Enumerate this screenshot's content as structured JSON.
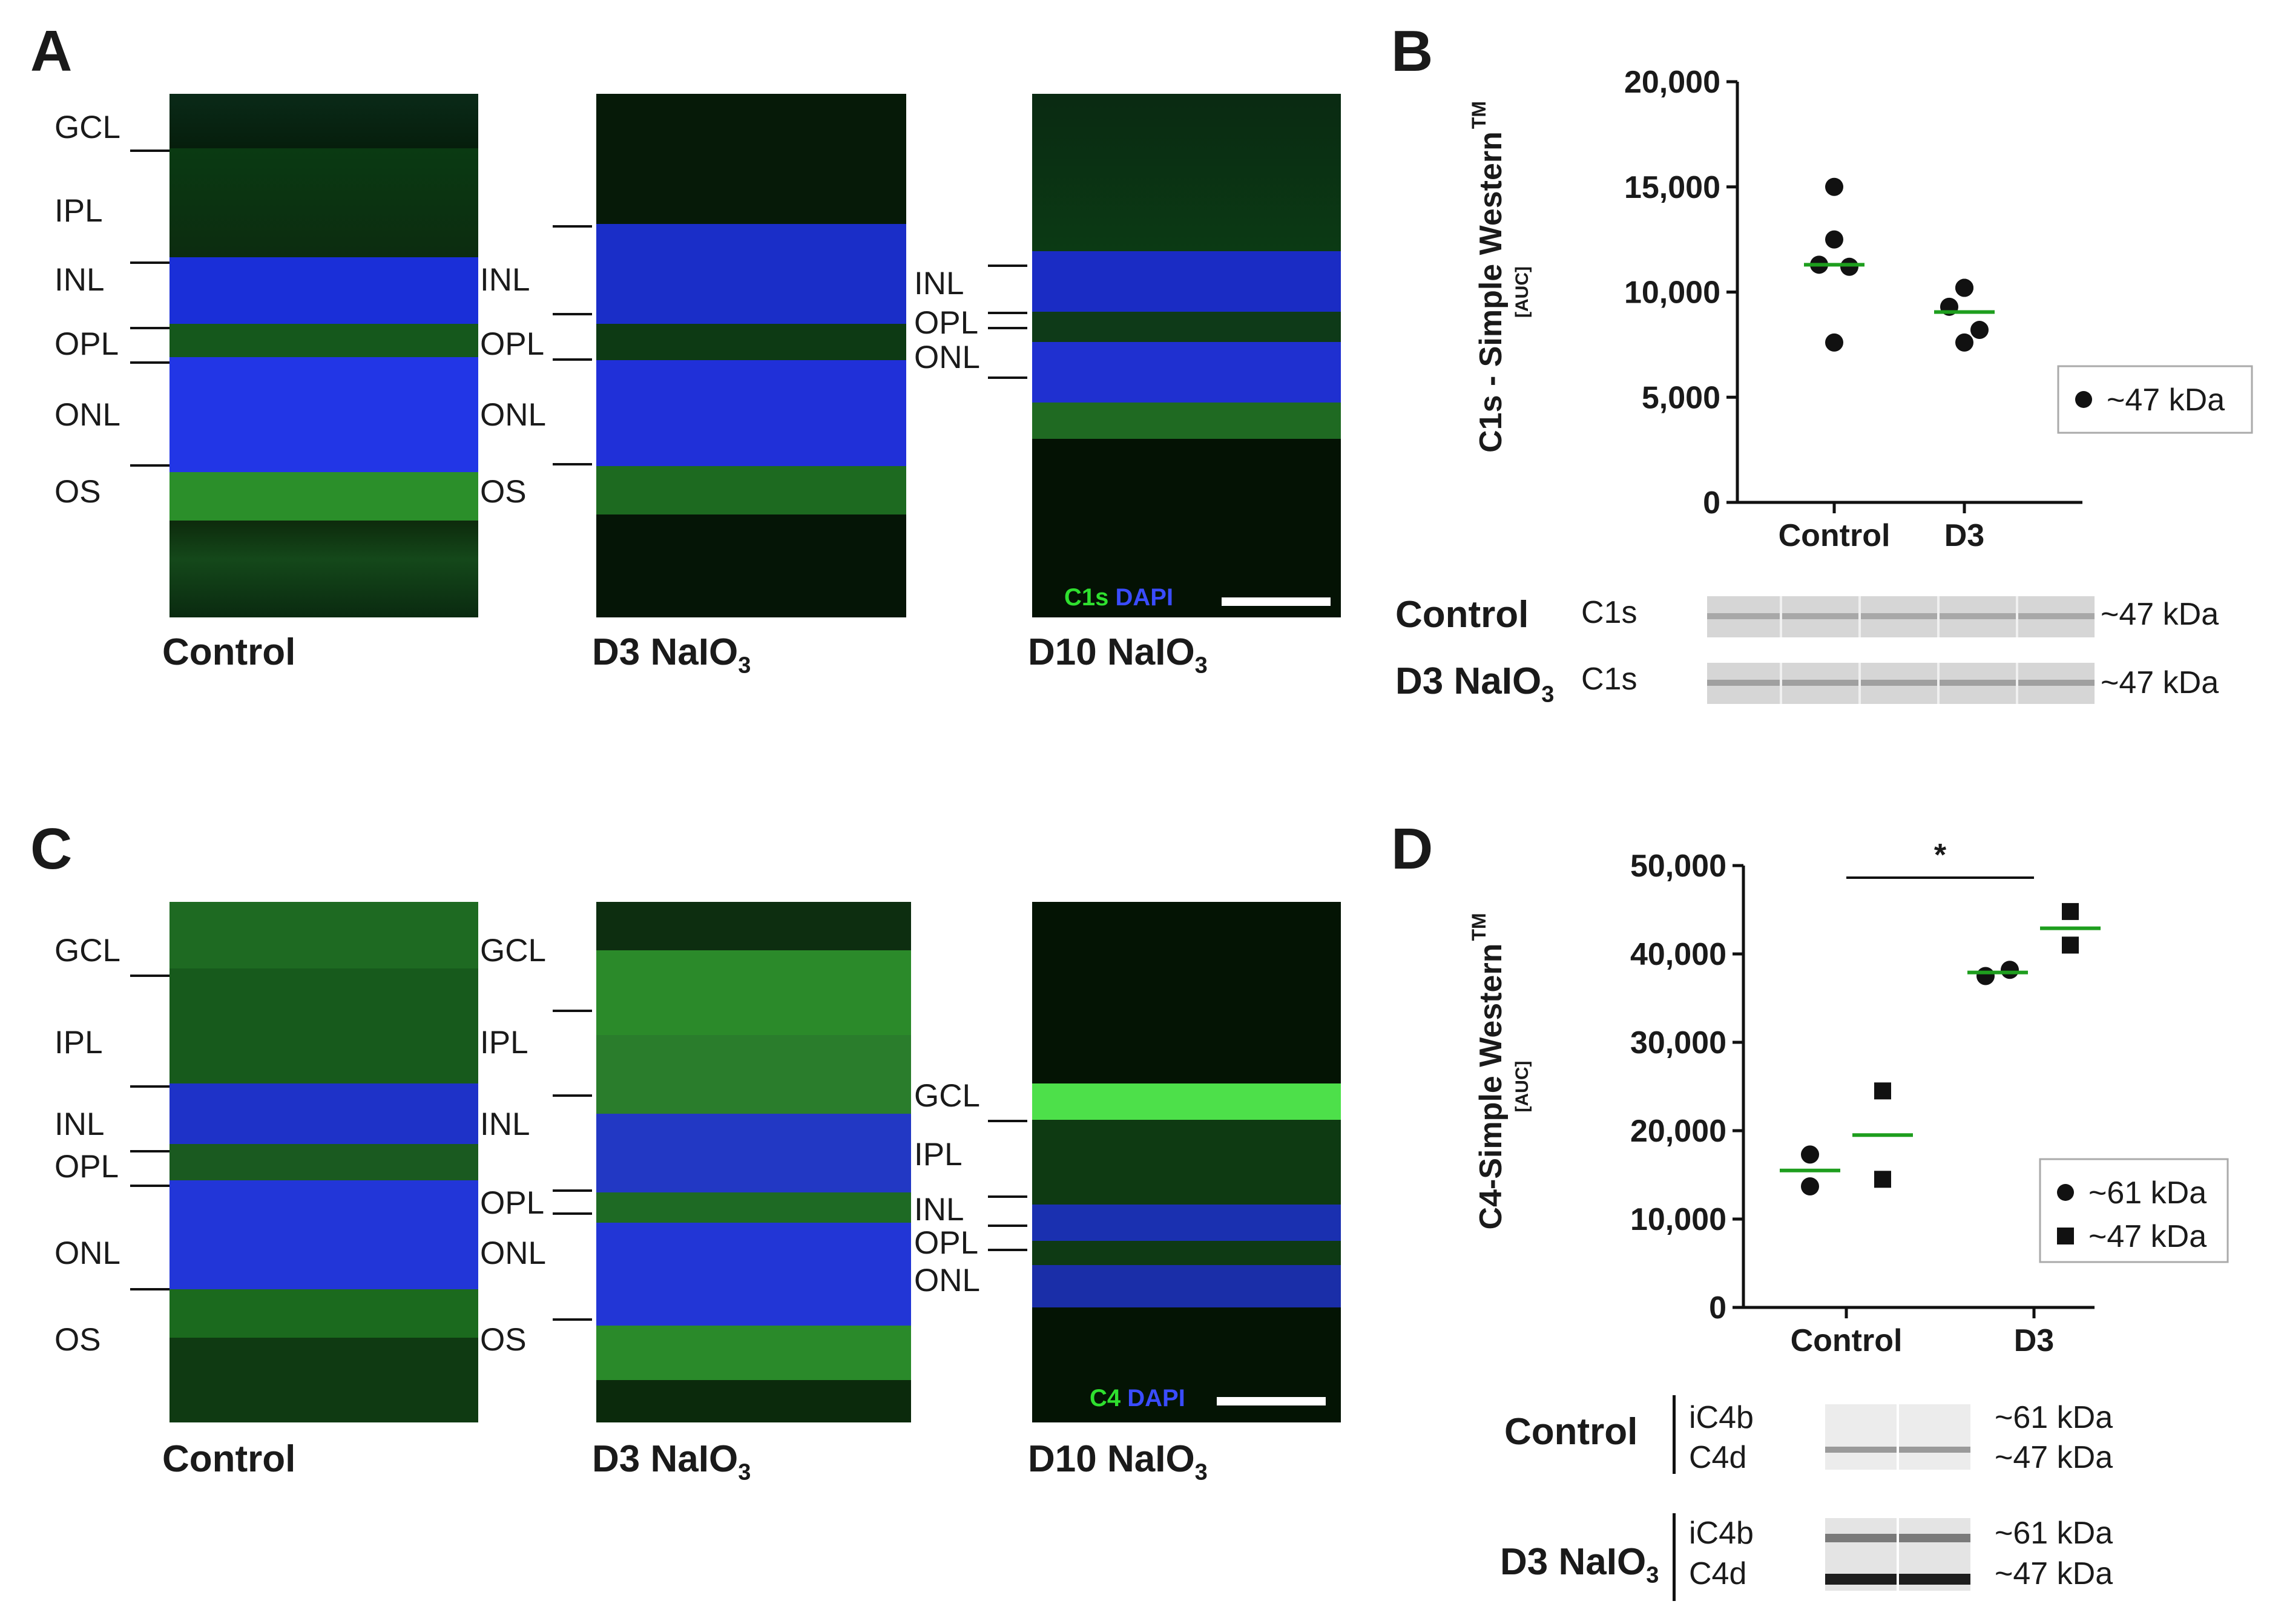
{
  "figure": {
    "panels": [
      "A",
      "B",
      "C",
      "D"
    ]
  },
  "panel_a": {
    "letter": "A",
    "control_layers": [
      "GCL",
      "IPL",
      "INL",
      "OPL",
      "ONL",
      "OS"
    ],
    "d3_layers": [
      "INL",
      "OPL",
      "ONL",
      "OS"
    ],
    "d10_layers": [
      "INL",
      "OPL",
      "ONL"
    ],
    "captions": {
      "control": "Control",
      "d3_main": "D3 NaIO",
      "d3_sub": "3",
      "d10_main": "D10 NaIO",
      "d10_sub": "3"
    },
    "stain_marker": "C1s",
    "stain_dapi": "DAPI"
  },
  "panel_b": {
    "letter": "B",
    "blot_rows": [
      {
        "group": "Control",
        "protein": "C1s",
        "size": "~47 kDa"
      },
      {
        "group_main": "D3 NaIO",
        "group_sub": "3",
        "protein": "C1s",
        "size": "~47 kDa"
      }
    ]
  },
  "panel_c": {
    "letter": "C",
    "control_layers": [
      "GCL",
      "IPL",
      "INL",
      "OPL",
      "ONL",
      "OS"
    ],
    "d3_layers": [
      "GCL",
      "IPL",
      "INL",
      "OPL",
      "ONL",
      "OS"
    ],
    "d10_layers": [
      "GCL",
      "IPL",
      "INL",
      "OPL",
      "ONL"
    ],
    "captions": {
      "control": "Control",
      "d3_main": "D3 NaIO",
      "d3_sub": "3",
      "d10_main": "D10 NaIO",
      "d10_sub": "3"
    },
    "stain_marker": "C4",
    "stain_dapi": "DAPI"
  },
  "panel_d": {
    "letter": "D",
    "blot_groups": [
      {
        "group": "Control",
        "proteins": [
          "iC4b",
          "C4d"
        ],
        "sizes": [
          "~61 kDa",
          "~47 kDa"
        ]
      },
      {
        "group_main": "D3 NaIO",
        "group_sub": "3",
        "proteins": [
          "iC4b",
          "C4d"
        ],
        "sizes": [
          "~61 kDa",
          "~47 kDa"
        ]
      }
    ]
  },
  "chart_data": [
    {
      "type": "scatter",
      "title": "",
      "ylabel": "C1s - Simple Western",
      "ylabel_sup": "TM",
      "ylabel_sub": "[AUC]",
      "categories": [
        "Control",
        "D3"
      ],
      "ylim": [
        0,
        20000
      ],
      "yticks": [
        0,
        5000,
        10000,
        15000,
        20000
      ],
      "ytick_labels": [
        "0",
        "5,000",
        "10,000",
        "15,000",
        "20,000"
      ],
      "legend": [
        {
          "marker": "circle",
          "label": "~47 kDa"
        }
      ],
      "legend_position": "right",
      "series": [
        {
          "name": "~47 kDa",
          "marker": "circle",
          "points": [
            {
              "category": "Control",
              "values": [
                15000,
                12500,
                11300,
                11200,
                7600
              ],
              "mean": 11300
            },
            {
              "category": "D3",
              "values": [
                10200,
                10200,
                9300,
                8200,
                7600
              ],
              "mean": 9050
            }
          ]
        }
      ],
      "mean_color": "#1e9e1e"
    },
    {
      "type": "scatter",
      "title": "",
      "ylabel": "C4-Simple Western",
      "ylabel_sup": "TM",
      "ylabel_sub": "[AUC]",
      "categories": [
        "Control",
        "D3"
      ],
      "ylim": [
        0,
        50000
      ],
      "yticks": [
        0,
        10000,
        20000,
        30000,
        40000,
        50000
      ],
      "ytick_labels": [
        "0",
        "10,000",
        "20,000",
        "30,000",
        "40,000",
        "50,000"
      ],
      "legend": [
        {
          "marker": "circle",
          "label": "~61 kDa"
        },
        {
          "marker": "square",
          "label": "~47 kDa"
        }
      ],
      "legend_position": "right",
      "significance": "*",
      "series": [
        {
          "name": "~61 kDa",
          "marker": "circle",
          "points": [
            {
              "category": "Control",
              "values": [
                17300,
                13700
              ],
              "mean": 15500
            },
            {
              "category": "D3",
              "values": [
                37500,
                38200
              ],
              "mean": 37900
            }
          ]
        },
        {
          "name": "~47 kDa",
          "marker": "square",
          "points": [
            {
              "category": "Control",
              "values": [
                24500,
                14500
              ],
              "mean": 19500
            },
            {
              "category": "D3",
              "values": [
                44800,
                41000
              ],
              "mean": 42900
            }
          ]
        }
      ],
      "mean_color": "#1e9e1e"
    }
  ]
}
